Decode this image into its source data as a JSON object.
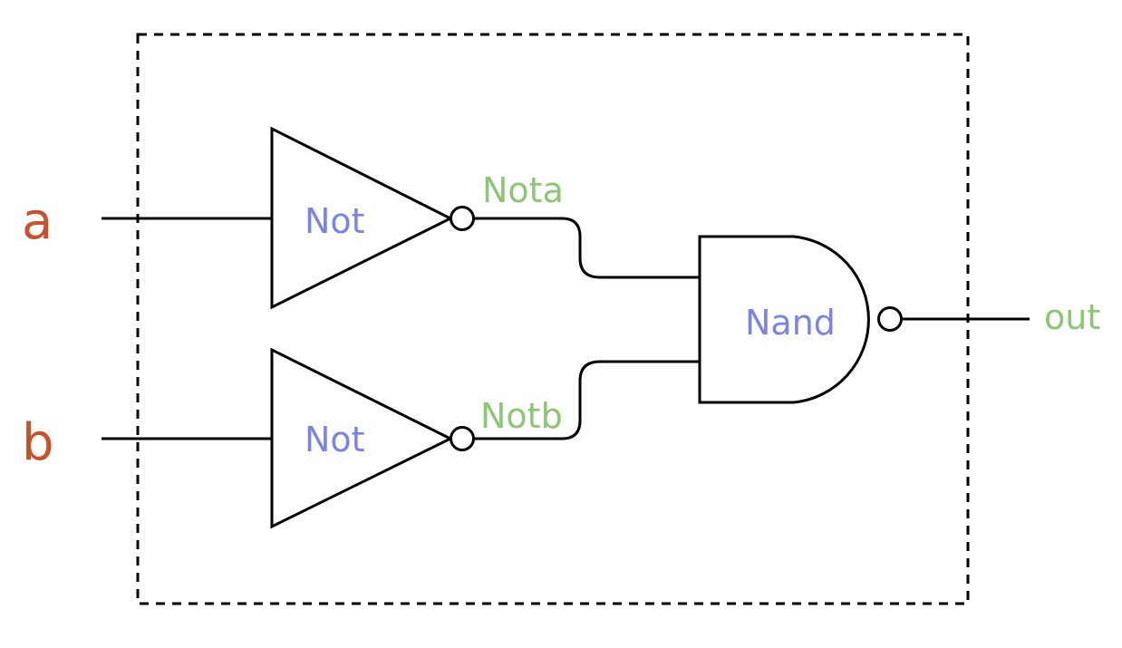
{
  "colors": {
    "port_label": "#c8522e",
    "gate_label": "#7b84e6",
    "net_label": "#8cc774",
    "line": "#000000"
  },
  "inputs": {
    "a": "a",
    "b": "b"
  },
  "gates": {
    "not_top": "Not",
    "not_bottom": "Not",
    "nand": "Nand"
  },
  "nets": {
    "nota": "Nota",
    "notb": "Notb",
    "out": "out"
  }
}
